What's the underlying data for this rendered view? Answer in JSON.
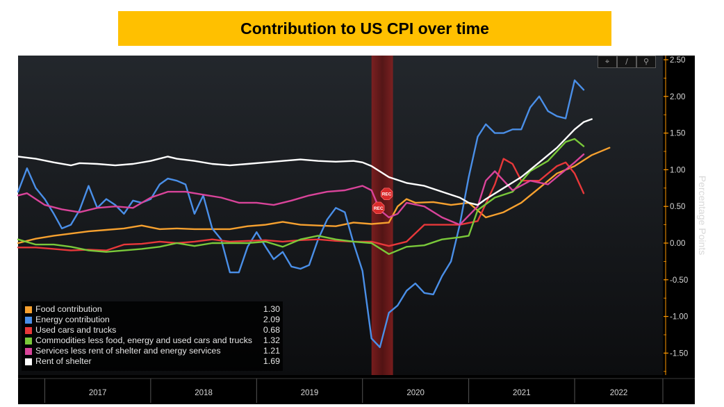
{
  "title": "Contribution to US CPI over time",
  "toolbar": {
    "crosshair_icon": "crosshair-icon",
    "draw_icon": "pencil-icon",
    "zoom_icon": "magnifier-icon"
  },
  "colors": {
    "background": "#181b1f",
    "recession": "#7a1a1a",
    "axis_text": "#d8d8d8",
    "tick": "#ff9900"
  },
  "chart_data": {
    "type": "line",
    "ylabel": "Percentage Points",
    "ylim": [
      -1.8,
      2.5
    ],
    "yticks": [
      2.5,
      2.0,
      1.5,
      1.0,
      0.5,
      0.0,
      -0.5,
      -1.0,
      -1.5
    ],
    "ytick_labels": [
      "2.50",
      "2.00",
      "1.50",
      "1.00",
      "0.50",
      "0.00",
      "-0.50",
      "-1.00",
      "-1.50"
    ],
    "x_start": "2016-10-01",
    "x_end": "2022-11-01",
    "year_labels": [
      {
        "label": "2017",
        "start": "2017-01-01",
        "end": "2018-01-01"
      },
      {
        "label": "2018",
        "start": "2018-01-01",
        "end": "2019-01-01"
      },
      {
        "label": "2019",
        "start": "2019-01-01",
        "end": "2020-01-01"
      },
      {
        "label": "2020",
        "start": "2020-01-01",
        "end": "2021-01-01"
      },
      {
        "label": "2021",
        "start": "2021-01-01",
        "end": "2022-01-01"
      },
      {
        "label": "2022",
        "start": "2022-01-01",
        "end": "2022-11-01"
      }
    ],
    "recession": {
      "start": "2020-02-01",
      "end": "2020-04-15",
      "marker_label": "REC"
    },
    "grid": false,
    "legend_position": "bottom-left",
    "series": [
      {
        "name": "Food contribution",
        "color": "#f7a12f",
        "last_value": "1.30",
        "points": [
          [
            "2016-10-01",
            0.0
          ],
          [
            "2016-12-01",
            0.06
          ],
          [
            "2017-02-01",
            0.1
          ],
          [
            "2017-04-01",
            0.13
          ],
          [
            "2017-06-01",
            0.16
          ],
          [
            "2017-08-01",
            0.18
          ],
          [
            "2017-10-01",
            0.2
          ],
          [
            "2017-12-01",
            0.24
          ],
          [
            "2018-02-01",
            0.19
          ],
          [
            "2018-04-01",
            0.2
          ],
          [
            "2018-06-01",
            0.19
          ],
          [
            "2018-08-01",
            0.19
          ],
          [
            "2018-10-01",
            0.19
          ],
          [
            "2018-12-01",
            0.23
          ],
          [
            "2019-02-01",
            0.25
          ],
          [
            "2019-04-01",
            0.29
          ],
          [
            "2019-06-01",
            0.25
          ],
          [
            "2019-08-01",
            0.24
          ],
          [
            "2019-10-01",
            0.23
          ],
          [
            "2019-12-01",
            0.28
          ],
          [
            "2020-02-01",
            0.26
          ],
          [
            "2020-04-01",
            0.28
          ],
          [
            "2020-05-01",
            0.5
          ],
          [
            "2020-06-01",
            0.6
          ],
          [
            "2020-07-01",
            0.55
          ],
          [
            "2020-09-01",
            0.56
          ],
          [
            "2020-11-01",
            0.52
          ],
          [
            "2021-01-01",
            0.55
          ],
          [
            "2021-03-01",
            0.35
          ],
          [
            "2021-05-01",
            0.42
          ],
          [
            "2021-07-01",
            0.55
          ],
          [
            "2021-09-01",
            0.75
          ],
          [
            "2021-11-01",
            0.95
          ],
          [
            "2022-01-01",
            1.05
          ],
          [
            "2022-03-01",
            1.2
          ],
          [
            "2022-05-01",
            1.3
          ]
        ]
      },
      {
        "name": "Energy contribution",
        "color": "#4a8fe8",
        "last_value": "2.09",
        "points": [
          [
            "2016-10-01",
            0.7
          ],
          [
            "2016-11-01",
            1.02
          ],
          [
            "2016-12-01",
            0.75
          ],
          [
            "2017-01-01",
            0.6
          ],
          [
            "2017-02-01",
            0.4
          ],
          [
            "2017-03-01",
            0.2
          ],
          [
            "2017-04-01",
            0.25
          ],
          [
            "2017-05-01",
            0.45
          ],
          [
            "2017-06-01",
            0.78
          ],
          [
            "2017-07-01",
            0.48
          ],
          [
            "2017-08-01",
            0.6
          ],
          [
            "2017-09-01",
            0.52
          ],
          [
            "2017-10-01",
            0.4
          ],
          [
            "2017-11-01",
            0.58
          ],
          [
            "2017-12-01",
            0.55
          ],
          [
            "2018-01-01",
            0.6
          ],
          [
            "2018-02-01",
            0.8
          ],
          [
            "2018-03-01",
            0.88
          ],
          [
            "2018-04-01",
            0.85
          ],
          [
            "2018-05-01",
            0.8
          ],
          [
            "2018-06-01",
            0.4
          ],
          [
            "2018-07-01",
            0.65
          ],
          [
            "2018-08-01",
            0.2
          ],
          [
            "2018-09-01",
            0.05
          ],
          [
            "2018-10-01",
            -0.4
          ],
          [
            "2018-11-01",
            -0.4
          ],
          [
            "2018-12-01",
            -0.05
          ],
          [
            "2019-01-01",
            0.15
          ],
          [
            "2019-02-01",
            -0.05
          ],
          [
            "2019-03-01",
            -0.22
          ],
          [
            "2019-04-01",
            -0.12
          ],
          [
            "2019-05-01",
            -0.32
          ],
          [
            "2019-06-01",
            -0.35
          ],
          [
            "2019-07-01",
            -0.3
          ],
          [
            "2019-08-01",
            0.05
          ],
          [
            "2019-09-01",
            0.32
          ],
          [
            "2019-10-01",
            0.48
          ],
          [
            "2019-11-01",
            0.42
          ],
          [
            "2019-12-01",
            0.0
          ],
          [
            "2020-01-01",
            -0.38
          ],
          [
            "2020-02-01",
            -1.3
          ],
          [
            "2020-03-01",
            -1.42
          ],
          [
            "2020-04-01",
            -0.95
          ],
          [
            "2020-05-01",
            -0.85
          ],
          [
            "2020-06-01",
            -0.65
          ],
          [
            "2020-07-01",
            -0.55
          ],
          [
            "2020-08-01",
            -0.68
          ],
          [
            "2020-09-01",
            -0.7
          ],
          [
            "2020-10-01",
            -0.45
          ],
          [
            "2020-11-01",
            -0.25
          ],
          [
            "2020-12-01",
            0.25
          ],
          [
            "2021-01-01",
            0.9
          ],
          [
            "2021-02-01",
            1.45
          ],
          [
            "2021-03-01",
            1.62
          ],
          [
            "2021-04-01",
            1.5
          ],
          [
            "2021-05-01",
            1.5
          ],
          [
            "2021-06-01",
            1.55
          ],
          [
            "2021-07-01",
            1.55
          ],
          [
            "2021-08-01",
            1.85
          ],
          [
            "2021-09-01",
            2.0
          ],
          [
            "2021-10-01",
            1.8
          ],
          [
            "2021-11-01",
            1.73
          ],
          [
            "2021-12-01",
            1.7
          ],
          [
            "2022-01-01",
            2.22
          ],
          [
            "2022-02-01",
            2.09
          ]
        ]
      },
      {
        "name": "Used cars and trucks",
        "color": "#e8383a",
        "last_value": "0.68",
        "points": [
          [
            "2016-10-01",
            -0.06
          ],
          [
            "2016-12-01",
            -0.06
          ],
          [
            "2017-02-01",
            -0.08
          ],
          [
            "2017-04-01",
            -0.1
          ],
          [
            "2017-06-01",
            -0.09
          ],
          [
            "2017-08-01",
            -0.1
          ],
          [
            "2017-10-01",
            -0.02
          ],
          [
            "2017-12-01",
            -0.01
          ],
          [
            "2018-02-01",
            0.02
          ],
          [
            "2018-04-01",
            0.0
          ],
          [
            "2018-06-01",
            0.02
          ],
          [
            "2018-08-01",
            0.05
          ],
          [
            "2018-10-01",
            0.02
          ],
          [
            "2018-12-01",
            0.03
          ],
          [
            "2019-02-01",
            0.04
          ],
          [
            "2019-04-01",
            0.02
          ],
          [
            "2019-06-01",
            0.04
          ],
          [
            "2019-08-01",
            0.05
          ],
          [
            "2019-10-01",
            0.03
          ],
          [
            "2019-12-01",
            0.02
          ],
          [
            "2020-02-01",
            0.02
          ],
          [
            "2020-04-01",
            -0.04
          ],
          [
            "2020-06-01",
            0.02
          ],
          [
            "2020-08-01",
            0.25
          ],
          [
            "2020-10-01",
            0.25
          ],
          [
            "2020-12-01",
            0.25
          ],
          [
            "2021-02-01",
            0.3
          ],
          [
            "2021-04-01",
            0.8
          ],
          [
            "2021-05-01",
            1.15
          ],
          [
            "2021-06-01",
            1.08
          ],
          [
            "2021-07-01",
            0.85
          ],
          [
            "2021-09-01",
            0.85
          ],
          [
            "2021-11-01",
            1.05
          ],
          [
            "2021-12-01",
            1.1
          ],
          [
            "2022-01-01",
            0.95
          ],
          [
            "2022-02-01",
            0.68
          ]
        ]
      },
      {
        "name": "Commodities less food, energy and used cars and trucks",
        "color": "#7ac93a",
        "last_value": "1.32",
        "points": [
          [
            "2016-10-01",
            0.05
          ],
          [
            "2016-12-01",
            -0.02
          ],
          [
            "2017-02-01",
            -0.02
          ],
          [
            "2017-04-01",
            -0.05
          ],
          [
            "2017-06-01",
            -0.1
          ],
          [
            "2017-08-01",
            -0.12
          ],
          [
            "2017-10-01",
            -0.1
          ],
          [
            "2017-12-01",
            -0.08
          ],
          [
            "2018-02-01",
            -0.05
          ],
          [
            "2018-04-01",
            0.0
          ],
          [
            "2018-06-01",
            -0.04
          ],
          [
            "2018-08-01",
            0.0
          ],
          [
            "2018-10-01",
            0.0
          ],
          [
            "2018-12-01",
            0.0
          ],
          [
            "2019-02-01",
            0.02
          ],
          [
            "2019-04-01",
            -0.05
          ],
          [
            "2019-06-01",
            0.05
          ],
          [
            "2019-08-01",
            0.1
          ],
          [
            "2019-10-01",
            0.05
          ],
          [
            "2019-12-01",
            0.02
          ],
          [
            "2020-02-01",
            0.0
          ],
          [
            "2020-04-01",
            -0.15
          ],
          [
            "2020-06-01",
            -0.05
          ],
          [
            "2020-08-01",
            -0.03
          ],
          [
            "2020-10-01",
            0.05
          ],
          [
            "2020-12-01",
            0.08
          ],
          [
            "2021-01-01",
            0.1
          ],
          [
            "2021-02-01",
            0.45
          ],
          [
            "2021-04-01",
            0.62
          ],
          [
            "2021-06-01",
            0.7
          ],
          [
            "2021-08-01",
            0.98
          ],
          [
            "2021-10-01",
            1.12
          ],
          [
            "2021-12-01",
            1.38
          ],
          [
            "2022-01-01",
            1.42
          ],
          [
            "2022-02-01",
            1.32
          ]
        ]
      },
      {
        "name": "Services less rent of shelter and energy services",
        "color": "#d9449a",
        "last_value": "1.21",
        "points": [
          [
            "2016-10-01",
            0.65
          ],
          [
            "2016-11-01",
            0.68
          ],
          [
            "2016-12-01",
            0.6
          ],
          [
            "2017-01-01",
            0.52
          ],
          [
            "2017-03-01",
            0.46
          ],
          [
            "2017-05-01",
            0.42
          ],
          [
            "2017-07-01",
            0.48
          ],
          [
            "2017-09-01",
            0.5
          ],
          [
            "2017-11-01",
            0.48
          ],
          [
            "2018-01-01",
            0.62
          ],
          [
            "2018-03-01",
            0.7
          ],
          [
            "2018-05-01",
            0.7
          ],
          [
            "2018-07-01",
            0.66
          ],
          [
            "2018-09-01",
            0.62
          ],
          [
            "2018-11-01",
            0.55
          ],
          [
            "2019-01-01",
            0.55
          ],
          [
            "2019-03-01",
            0.52
          ],
          [
            "2019-05-01",
            0.58
          ],
          [
            "2019-07-01",
            0.65
          ],
          [
            "2019-09-01",
            0.7
          ],
          [
            "2019-11-01",
            0.72
          ],
          [
            "2020-01-01",
            0.78
          ],
          [
            "2020-02-01",
            0.72
          ],
          [
            "2020-03-01",
            0.45
          ],
          [
            "2020-04-01",
            0.35
          ],
          [
            "2020-05-01",
            0.4
          ],
          [
            "2020-06-01",
            0.55
          ],
          [
            "2020-08-01",
            0.5
          ],
          [
            "2020-10-01",
            0.35
          ],
          [
            "2020-12-01",
            0.25
          ],
          [
            "2021-02-01",
            0.5
          ],
          [
            "2021-03-01",
            0.85
          ],
          [
            "2021-04-01",
            0.98
          ],
          [
            "2021-06-01",
            0.72
          ],
          [
            "2021-08-01",
            0.85
          ],
          [
            "2021-10-01",
            0.8
          ],
          [
            "2021-12-01",
            1.0
          ],
          [
            "2022-01-01",
            1.1
          ],
          [
            "2022-02-01",
            1.21
          ]
        ]
      },
      {
        "name": "Rent of shelter",
        "color": "#ffffff",
        "last_value": "1.69",
        "points": [
          [
            "2016-10-01",
            1.18
          ],
          [
            "2016-12-01",
            1.15
          ],
          [
            "2017-02-01",
            1.1
          ],
          [
            "2017-04-01",
            1.06
          ],
          [
            "2017-05-01",
            1.09
          ],
          [
            "2017-07-01",
            1.08
          ],
          [
            "2017-09-01",
            1.06
          ],
          [
            "2017-11-01",
            1.08
          ],
          [
            "2018-01-01",
            1.12
          ],
          [
            "2018-03-01",
            1.18
          ],
          [
            "2018-04-01",
            1.15
          ],
          [
            "2018-06-01",
            1.12
          ],
          [
            "2018-08-01",
            1.08
          ],
          [
            "2018-10-01",
            1.06
          ],
          [
            "2018-12-01",
            1.08
          ],
          [
            "2019-02-01",
            1.1
          ],
          [
            "2019-04-01",
            1.12
          ],
          [
            "2019-06-01",
            1.14
          ],
          [
            "2019-08-01",
            1.12
          ],
          [
            "2019-10-01",
            1.11
          ],
          [
            "2019-12-01",
            1.12
          ],
          [
            "2020-01-01",
            1.1
          ],
          [
            "2020-02-01",
            1.05
          ],
          [
            "2020-04-01",
            0.9
          ],
          [
            "2020-06-01",
            0.82
          ],
          [
            "2020-08-01",
            0.78
          ],
          [
            "2020-10-01",
            0.7
          ],
          [
            "2020-12-01",
            0.62
          ],
          [
            "2021-01-01",
            0.55
          ],
          [
            "2021-02-01",
            0.52
          ],
          [
            "2021-03-01",
            0.6
          ],
          [
            "2021-05-01",
            0.75
          ],
          [
            "2021-07-01",
            0.9
          ],
          [
            "2021-09-01",
            1.1
          ],
          [
            "2021-11-01",
            1.3
          ],
          [
            "2022-01-01",
            1.55
          ],
          [
            "2022-02-01",
            1.65
          ],
          [
            "2022-03-01",
            1.69
          ]
        ]
      }
    ]
  }
}
